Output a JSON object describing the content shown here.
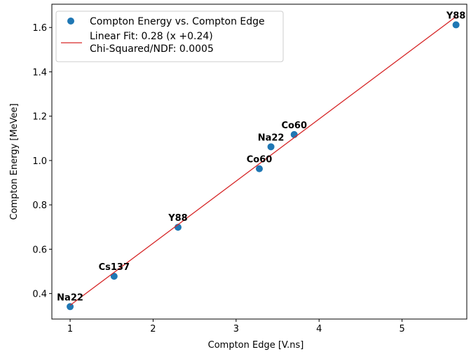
{
  "chart_data": {
    "type": "scatter",
    "xlabel": "Compton Edge [V.ns]",
    "ylabel": "Compton Energy [MeVee]",
    "xlim": [
      0.78,
      5.78
    ],
    "ylim": [
      0.285,
      1.705
    ],
    "xticks": [
      1,
      2,
      3,
      4,
      5
    ],
    "yticks": [
      0.4,
      0.6,
      0.8,
      1.0,
      1.2,
      1.4,
      1.6
    ],
    "xtick_labels": [
      "1",
      "2",
      "3",
      "4",
      "5"
    ],
    "ytick_labels": [
      "0.4",
      "0.6",
      "0.8",
      "1.0",
      "1.2",
      "1.4",
      "1.6"
    ],
    "grid": false,
    "legend_position": "top-left",
    "series": [
      {
        "name": "Compton Energy vs. Compton Edge",
        "kind": "scatter",
        "color": "#1f77b4",
        "points": [
          {
            "x": 1.0,
            "y": 0.341,
            "label": "Na22"
          },
          {
            "x": 1.53,
            "y": 0.478,
            "label": "Cs137"
          },
          {
            "x": 2.3,
            "y": 0.699,
            "label": "Y88"
          },
          {
            "x": 3.28,
            "y": 0.963,
            "label": "Co60"
          },
          {
            "x": 3.42,
            "y": 1.062,
            "label": "Na22"
          },
          {
            "x": 3.7,
            "y": 1.117,
            "label": "Co60"
          },
          {
            "x": 5.65,
            "y": 1.612,
            "label": "Y88"
          }
        ]
      },
      {
        "name": "Linear Fit: 0.28 (x +0.24)",
        "name2": "Chi-Squared/NDF: 0.0005",
        "kind": "line",
        "color": "#d62728",
        "x": [
          1.0,
          5.65
        ],
        "y": [
          0.347,
          1.649
        ]
      }
    ]
  }
}
